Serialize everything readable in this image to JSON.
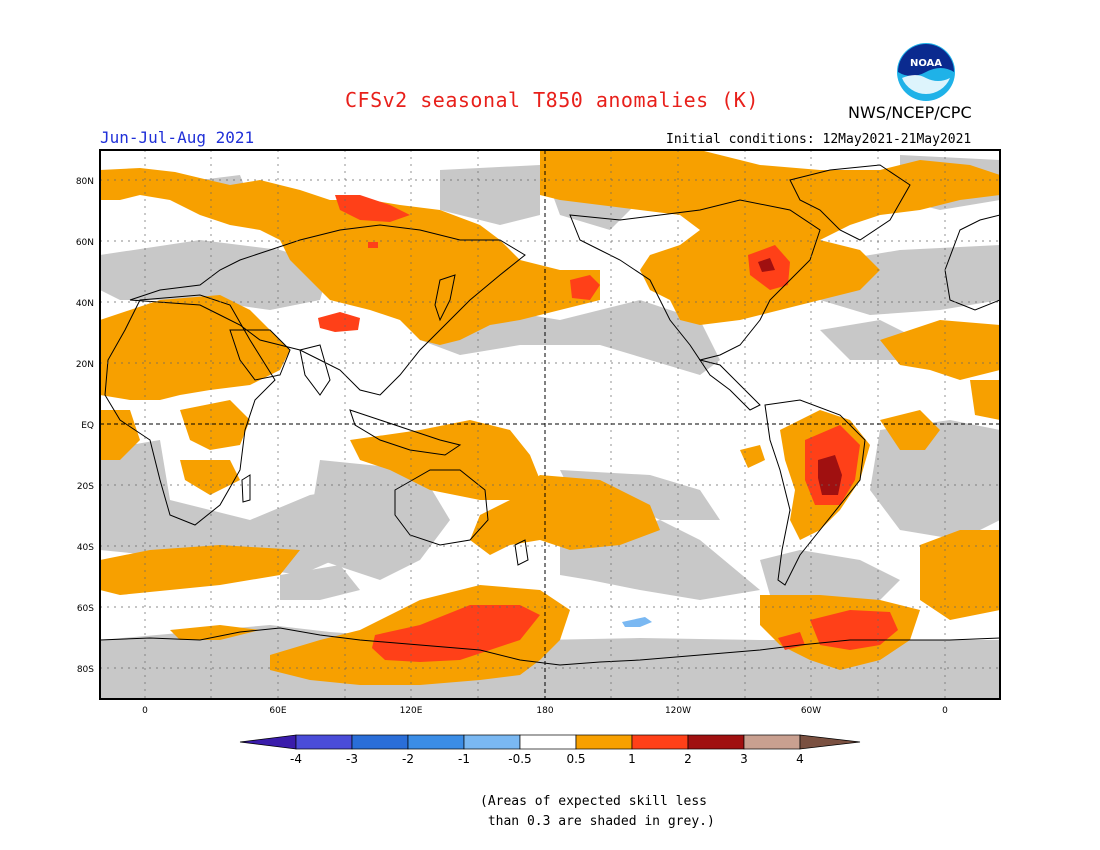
{
  "title": "CFSv2 seasonal T850 anomalies (K)",
  "season": "Jun-Jul-Aug 2021",
  "initial_conditions": "Initial conditions: 12May2021-21May2021",
  "agency": "NWS/NCEP/CPC",
  "logo_text": "NOAA",
  "lat_labels": [
    "80N",
    "60N",
    "40N",
    "20N",
    "EQ",
    "20S",
    "40S",
    "60S",
    "80S"
  ],
  "lon_labels": [
    "0",
    "60E",
    "120E",
    "180",
    "120W",
    "60W",
    "0"
  ],
  "legend": {
    "ticks": [
      "-4",
      "-3",
      "-2",
      "-1",
      "-0.5",
      "0.5",
      "1",
      "2",
      "3",
      "4"
    ],
    "colors": [
      "#3a1cab",
      "#4a4cd8",
      "#2a6ed8",
      "#3b8de6",
      "#7ab8f2",
      "#ffffff",
      "#f7a000",
      "#ff4018",
      "#a01010",
      "#c9a090",
      "#7a5040"
    ]
  },
  "colors": {
    "skill_grey": "#c8c8c8",
    "anom_05_1": "#f7a000",
    "anom_1_2": "#ff4018",
    "anom_2_3": "#a01010",
    "anom_neg": "#7ab8f2"
  },
  "note": "(Areas of expected skill less\n than 0.3 are shaded in grey.)"
}
